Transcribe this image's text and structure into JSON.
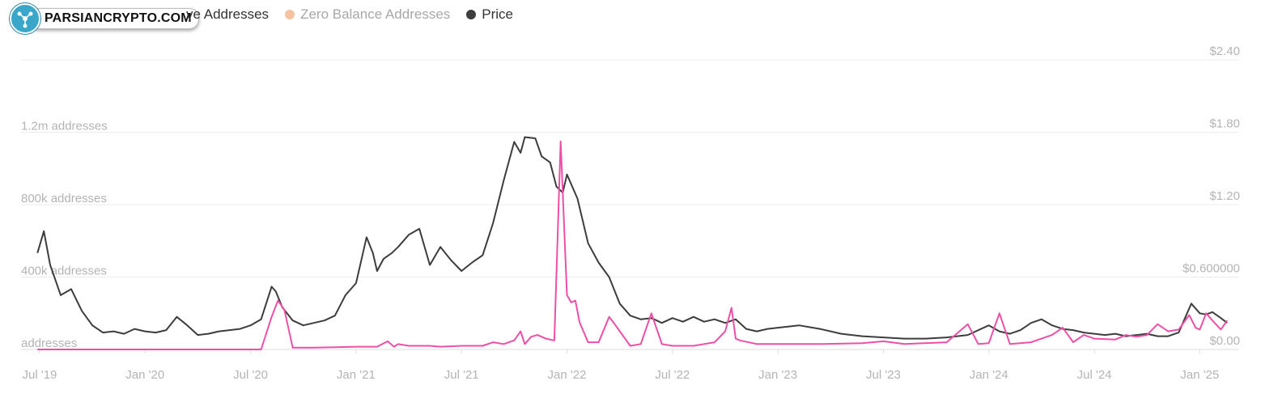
{
  "watermark": {
    "text": "PARSIANCRYPTO.COM"
  },
  "legend": [
    {
      "label": "ve Addresses",
      "color": "#ee4fa6",
      "muted": false
    },
    {
      "label": "Zero Balance Addresses",
      "color": "#f6c3a0",
      "muted": true
    },
    {
      "label": "Price",
      "color": "#3d3d3d",
      "muted": false
    }
  ],
  "chart_data": {
    "type": "line",
    "x_ticks": [
      "Jul '19",
      "Jan '20",
      "Jul '20",
      "Jan '21",
      "Jul '21",
      "Jan '22",
      "Jul '22",
      "Jan '23",
      "Jul '23",
      "Jan '24",
      "Jul '24",
      "Jan '25"
    ],
    "y_left_ticks": [
      {
        "label": "addresses",
        "value": 0
      },
      {
        "label": "400k addresses",
        "value": 400000
      },
      {
        "label": "800k addresses",
        "value": 800000
      },
      {
        "label": "1.2m addresses",
        "value": 1200000
      }
    ],
    "y_right_ticks": [
      {
        "label": "$0.00",
        "value": 0
      },
      {
        "label": "$0.600000",
        "value": 0.6
      },
      {
        "label": "$1.20",
        "value": 1.2
      },
      {
        "label": "$1.80",
        "value": 1.8
      },
      {
        "label": "$2.40",
        "value": 2.4
      }
    ],
    "y_left_range": [
      0,
      1600000
    ],
    "y_right_range": [
      0,
      2.4
    ],
    "grid": true,
    "legend_position": "top-left",
    "series": [
      {
        "name": "Price",
        "axis": "right",
        "color": "#3d3d3d",
        "x": [
          2019.49,
          2019.52,
          2019.55,
          2019.6,
          2019.65,
          2019.7,
          2019.75,
          2019.8,
          2019.85,
          2019.9,
          2019.95,
          2020.0,
          2020.05,
          2020.1,
          2020.15,
          2020.2,
          2020.25,
          2020.3,
          2020.35,
          2020.4,
          2020.45,
          2020.5,
          2020.55,
          2020.6,
          2020.62,
          2020.65,
          2020.7,
          2020.75,
          2020.8,
          2020.85,
          2020.9,
          2020.95,
          2021.0,
          2021.05,
          2021.08,
          2021.1,
          2021.13,
          2021.17,
          2021.2,
          2021.25,
          2021.3,
          2021.35,
          2021.4,
          2021.45,
          2021.5,
          2021.55,
          2021.6,
          2021.65,
          2021.7,
          2021.75,
          2021.78,
          2021.8,
          2021.85,
          2021.88,
          2021.92,
          2021.95,
          2021.98,
          2022.0,
          2022.05,
          2022.1,
          2022.15,
          2022.2,
          2022.25,
          2022.3,
          2022.35,
          2022.4,
          2022.45,
          2022.5,
          2022.55,
          2022.6,
          2022.65,
          2022.7,
          2022.75,
          2022.8,
          2022.85,
          2022.9,
          2022.95,
          2023.0,
          2023.1,
          2023.2,
          2023.3,
          2023.4,
          2023.5,
          2023.6,
          2023.7,
          2023.8,
          2023.9,
          2024.0,
          2024.05,
          2024.1,
          2024.15,
          2024.2,
          2024.25,
          2024.3,
          2024.35,
          2024.4,
          2024.45,
          2024.5,
          2024.55,
          2024.6,
          2024.65,
          2024.7,
          2024.75,
          2024.8,
          2024.85,
          2024.9,
          2024.93,
          2024.96,
          2025.0,
          2025.03,
          2025.06,
          2025.1,
          2025.13
        ],
        "values": [
          0.8,
          0.98,
          0.7,
          0.45,
          0.5,
          0.32,
          0.2,
          0.14,
          0.15,
          0.13,
          0.17,
          0.15,
          0.14,
          0.16,
          0.27,
          0.2,
          0.12,
          0.13,
          0.15,
          0.16,
          0.17,
          0.2,
          0.25,
          0.52,
          0.48,
          0.35,
          0.24,
          0.2,
          0.22,
          0.24,
          0.28,
          0.45,
          0.55,
          0.93,
          0.8,
          0.65,
          0.75,
          0.8,
          0.85,
          0.95,
          1.0,
          0.7,
          0.85,
          0.74,
          0.65,
          0.72,
          0.78,
          1.05,
          1.4,
          1.72,
          1.63,
          1.76,
          1.75,
          1.6,
          1.55,
          1.35,
          1.3,
          1.45,
          1.25,
          0.88,
          0.72,
          0.6,
          0.38,
          0.28,
          0.25,
          0.26,
          0.22,
          0.26,
          0.23,
          0.27,
          0.23,
          0.25,
          0.22,
          0.25,
          0.17,
          0.15,
          0.17,
          0.18,
          0.2,
          0.17,
          0.13,
          0.11,
          0.1,
          0.09,
          0.09,
          0.1,
          0.12,
          0.2,
          0.15,
          0.13,
          0.16,
          0.22,
          0.25,
          0.2,
          0.17,
          0.16,
          0.14,
          0.13,
          0.12,
          0.13,
          0.11,
          0.12,
          0.13,
          0.11,
          0.11,
          0.14,
          0.26,
          0.38,
          0.3,
          0.29,
          0.31,
          0.26,
          0.22
        ]
      },
      {
        "name": "ve Addresses",
        "axis": "left",
        "color": "#ee4fa6",
        "x": [
          2019.49,
          2020.5,
          2020.55,
          2020.6,
          2020.63,
          2020.66,
          2020.7,
          2020.8,
          2020.9,
          2021.0,
          2021.1,
          2021.15,
          2021.18,
          2021.2,
          2021.25,
          2021.3,
          2021.35,
          2021.4,
          2021.5,
          2021.6,
          2021.65,
          2021.7,
          2021.75,
          2021.78,
          2021.8,
          2021.83,
          2021.86,
          2021.9,
          2021.94,
          2021.97,
          2022.0,
          2022.02,
          2022.04,
          2022.06,
          2022.1,
          2022.15,
          2022.2,
          2022.22,
          2022.3,
          2022.35,
          2022.4,
          2022.45,
          2022.5,
          2022.6,
          2022.65,
          2022.7,
          2022.75,
          2022.78,
          2022.8,
          2022.82,
          2022.9,
          2023.0,
          2023.2,
          2023.4,
          2023.5,
          2023.6,
          2023.8,
          2023.9,
          2023.95,
          2024.0,
          2024.05,
          2024.1,
          2024.2,
          2024.25,
          2024.3,
          2024.35,
          2024.4,
          2024.45,
          2024.5,
          2024.6,
          2024.65,
          2024.7,
          2024.75,
          2024.8,
          2024.85,
          2024.9,
          2024.95,
          2024.98,
          2025.0,
          2025.03,
          2025.06,
          2025.1,
          2025.13
        ],
        "values": [
          0,
          0,
          0,
          180000,
          270000,
          220000,
          10000,
          10000,
          12000,
          15000,
          15000,
          45000,
          15000,
          30000,
          20000,
          20000,
          20000,
          15000,
          20000,
          20000,
          40000,
          30000,
          50000,
          100000,
          30000,
          70000,
          80000,
          60000,
          50000,
          1150000,
          300000,
          260000,
          270000,
          150000,
          40000,
          40000,
          180000,
          150000,
          20000,
          30000,
          200000,
          30000,
          20000,
          20000,
          30000,
          40000,
          100000,
          230000,
          60000,
          50000,
          30000,
          30000,
          30000,
          35000,
          45000,
          30000,
          40000,
          140000,
          30000,
          35000,
          200000,
          30000,
          40000,
          60000,
          80000,
          120000,
          40000,
          80000,
          60000,
          55000,
          80000,
          70000,
          80000,
          140000,
          100000,
          110000,
          190000,
          120000,
          110000,
          200000,
          160000,
          110000,
          160000
        ]
      }
    ]
  }
}
